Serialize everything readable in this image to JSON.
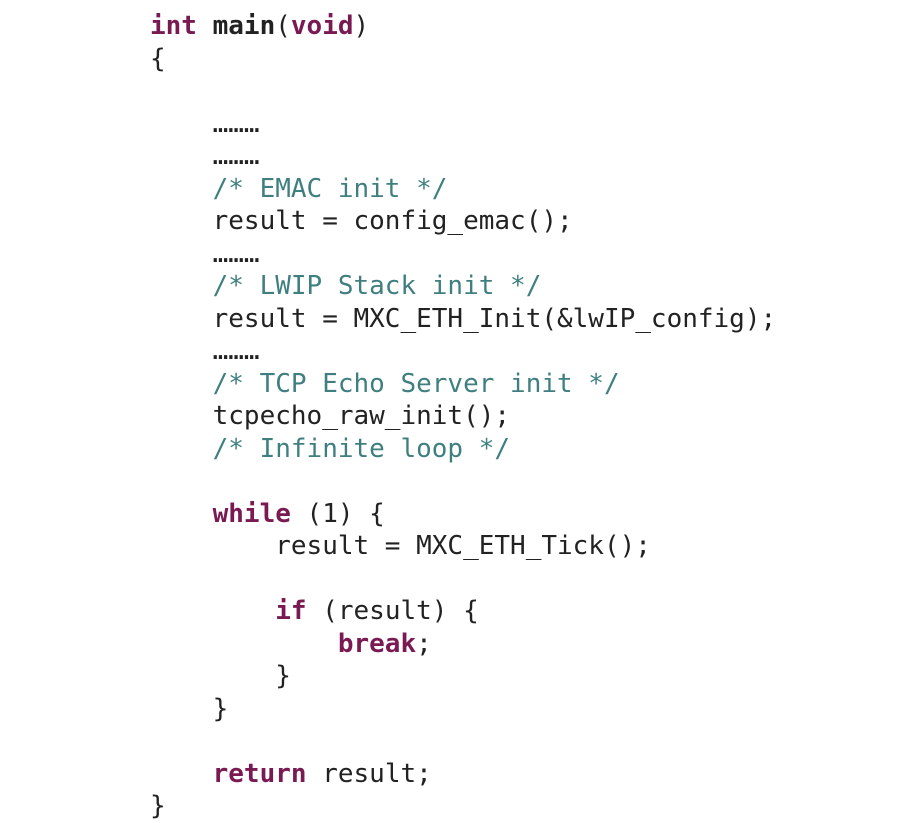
{
  "code": {
    "type": "code-snippet",
    "language": "c",
    "font_family": "Consolas, Menlo, monospace",
    "font_size_pt": 20,
    "line_height": 1.25,
    "indent_spaces": 4,
    "background_color": "#ffffff",
    "colors": {
      "keyword": "#7a1a53",
      "function_name": "#222222",
      "type": "#7a1a53",
      "comment": "#3f7f7f",
      "text": "#222222"
    },
    "tokens": {
      "kw_int": "int",
      "fn_main": "main",
      "lparen": "(",
      "kw_void": "void",
      "rparen": ")",
      "lbrace": "{",
      "ellipsis1": "………",
      "ellipsis2": "………",
      "cm_emac": "/* EMAC init */",
      "stmt_emac": "result = config_emac();",
      "ellipsis3": "………",
      "cm_lwip": "/* LWIP Stack init */",
      "stmt_lwip": "result = MXC_ETH_Init(&lwIP_config);",
      "ellipsis4": "………",
      "cm_tcp": "/* TCP Echo Server init */",
      "stmt_tcp": "tcpecho_raw_init();",
      "cm_loop": "/* Infinite loop */",
      "kw_while": "while",
      "while_cond": " (1) {",
      "stmt_tick": "result = MXC_ETH_Tick();",
      "kw_if": "if",
      "if_cond": " (result) {",
      "kw_break": "break",
      "semicolon": ";",
      "rbrace_if": "}",
      "rbrace_while": "}",
      "kw_return": "return",
      "ret_expr": " result;",
      "rbrace_fn": "}"
    }
  }
}
